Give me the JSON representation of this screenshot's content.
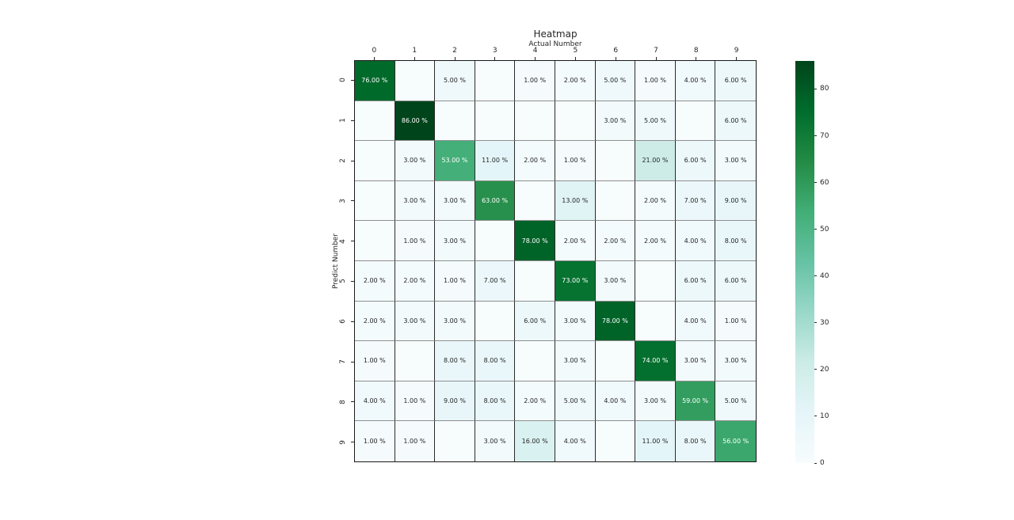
{
  "figure": {
    "title": "Heatmap",
    "x_axis_label": "Actual Number",
    "y_axis_label": "Predict Number"
  },
  "chart_data": {
    "type": "heatmap",
    "title": "Heatmap",
    "xlabel": "Actual Number",
    "ylabel": "Predict Number",
    "x_categories": [
      "0",
      "1",
      "2",
      "3",
      "4",
      "5",
      "6",
      "7",
      "8",
      "9"
    ],
    "y_categories": [
      "0",
      "1",
      "2",
      "3",
      "4",
      "5",
      "6",
      "7",
      "8",
      "9"
    ],
    "values": [
      [
        76,
        0,
        5,
        0,
        1,
        2,
        5,
        1,
        4,
        6
      ],
      [
        0,
        86,
        0,
        0,
        0,
        0,
        3,
        5,
        0,
        6
      ],
      [
        0,
        3,
        53,
        11,
        2,
        1,
        0,
        21,
        6,
        3
      ],
      [
        0,
        3,
        3,
        63,
        0,
        13,
        0,
        2,
        7,
        9
      ],
      [
        0,
        1,
        3,
        0,
        78,
        2,
        2,
        2,
        4,
        8
      ],
      [
        2,
        2,
        1,
        7,
        0,
        73,
        3,
        0,
        6,
        6
      ],
      [
        2,
        3,
        3,
        0,
        6,
        3,
        78,
        0,
        4,
        1
      ],
      [
        1,
        0,
        8,
        8,
        0,
        3,
        0,
        74,
        3,
        3
      ],
      [
        4,
        1,
        9,
        8,
        2,
        5,
        4,
        3,
        59,
        5
      ],
      [
        1,
        1,
        0,
        3,
        16,
        4,
        0,
        11,
        8,
        56
      ]
    ],
    "cell_labels": [
      [
        "76.00 %",
        "",
        "5.00 %",
        "",
        "1.00 %",
        "2.00 %",
        "5.00 %",
        "1.00 %",
        "4.00 %",
        "6.00 %"
      ],
      [
        "",
        "86.00 %",
        "",
        "",
        "",
        "",
        "3.00 %",
        "5.00 %",
        "",
        "6.00 %"
      ],
      [
        "",
        "3.00 %",
        "53.00 %",
        "11.00 %",
        "2.00 %",
        "1.00 %",
        "",
        "21.00 %",
        "6.00 %",
        "3.00 %"
      ],
      [
        "",
        "3.00 %",
        "3.00 %",
        "63.00 %",
        "",
        "13.00 %",
        "",
        "2.00 %",
        "7.00 %",
        "9.00 %"
      ],
      [
        "",
        "1.00 %",
        "3.00 %",
        "",
        "78.00 %",
        "2.00 %",
        "2.00 %",
        "2.00 %",
        "4.00 %",
        "8.00 %"
      ],
      [
        "2.00 %",
        "2.00 %",
        "1.00 %",
        "7.00 %",
        "",
        "73.00 %",
        "3.00 %",
        "",
        "6.00 %",
        "6.00 %"
      ],
      [
        "2.00 %",
        "3.00 %",
        "3.00 %",
        "",
        "6.00 %",
        "3.00 %",
        "78.00 %",
        "",
        "4.00 %",
        "1.00 %"
      ],
      [
        "1.00 %",
        "",
        "8.00 %",
        "8.00 %",
        "",
        "3.00 %",
        "",
        "74.00 %",
        "3.00 %",
        "3.00 %"
      ],
      [
        "4.00 %",
        "1.00 %",
        "9.00 %",
        "8.00 %",
        "2.00 %",
        "5.00 %",
        "4.00 %",
        "3.00 %",
        "59.00 %",
        "5.00 %"
      ],
      [
        "1.00 %",
        "1.00 %",
        "",
        "3.00 %",
        "16.00 %",
        "4.00 %",
        "",
        "11.00 %",
        "8.00 %",
        "56.00 %"
      ]
    ],
    "vmin": 0,
    "vmax": 86,
    "colormap": "BuGn",
    "colormap_stops": [
      "#f7fcfd",
      "#e5f5f9",
      "#ccece6",
      "#99d8c9",
      "#66c2a4",
      "#41ae76",
      "#238b45",
      "#006d2c",
      "#00441b"
    ],
    "colorbar_ticks": [
      0,
      10,
      20,
      30,
      40,
      50,
      60,
      70,
      80
    ],
    "colorbar_position": "right",
    "annotation_color_dark": "#262626",
    "annotation_color_light": "#ffffff",
    "grid": true
  }
}
